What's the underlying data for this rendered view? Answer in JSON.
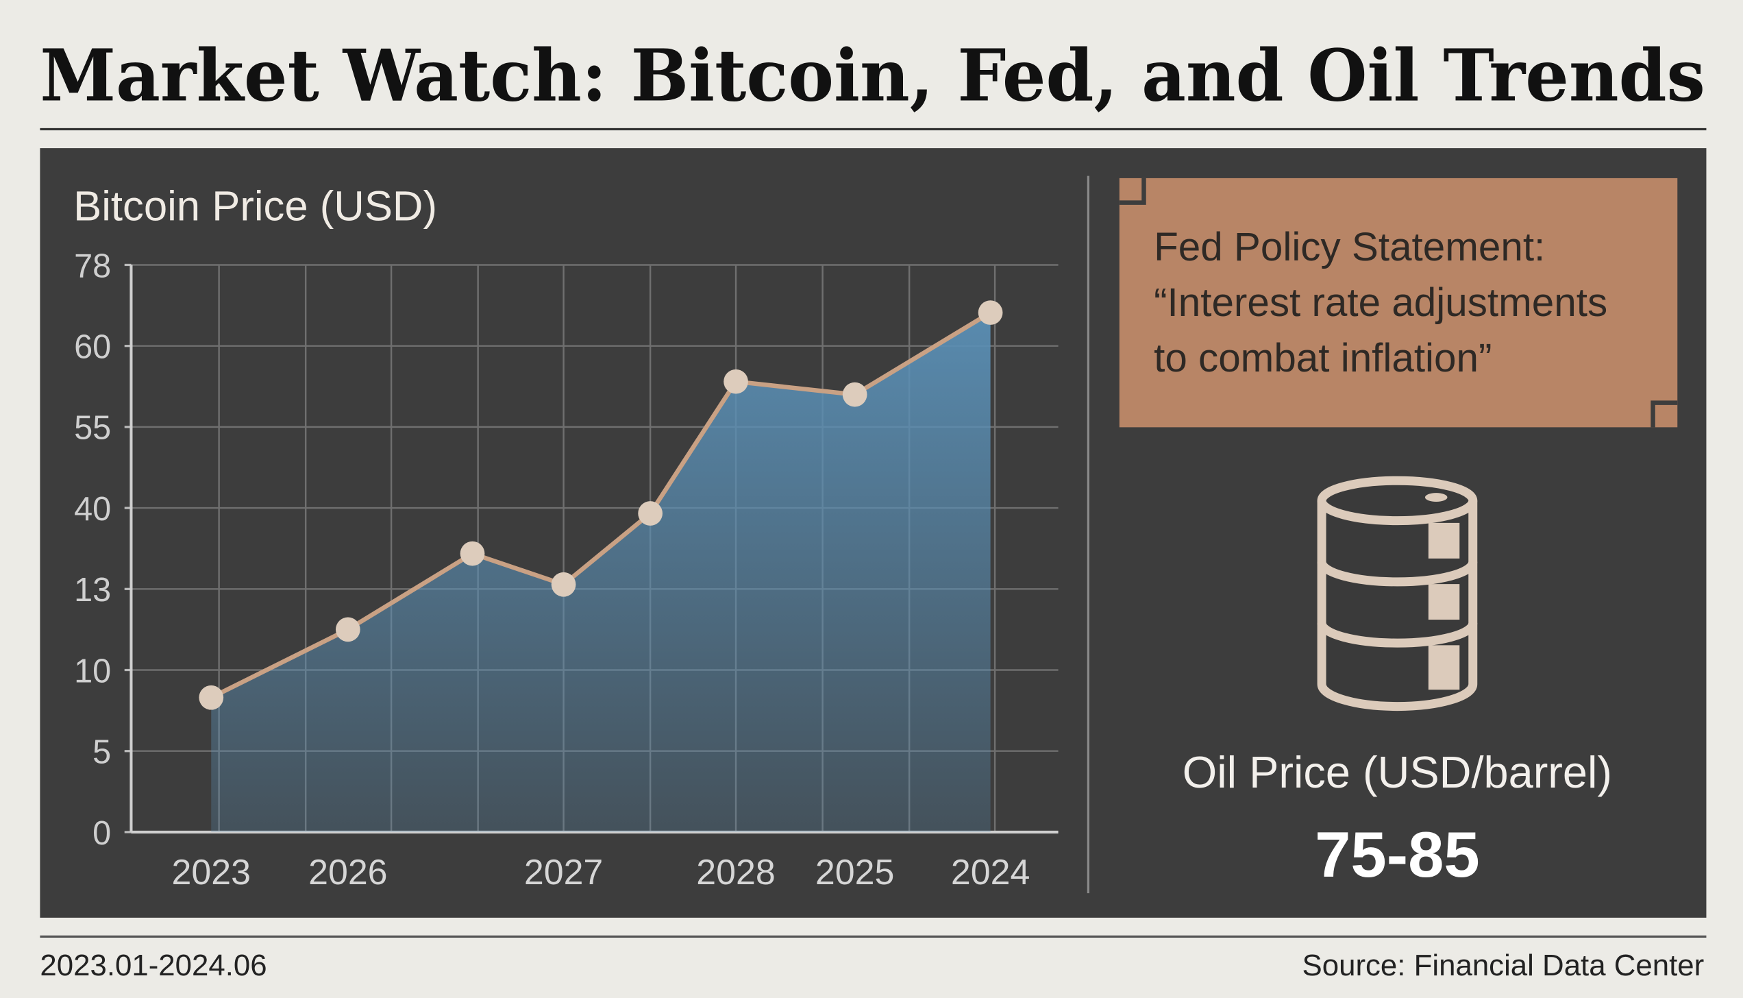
{
  "title": "Market Watch: Bitcoin, Fed, and Oil Trends",
  "chart_data": {
    "type": "line",
    "title": "Bitcoin Price (USD)",
    "categories": [
      "2023",
      "2026",
      null,
      "2027",
      null,
      "2028",
      "2025",
      "2024"
    ],
    "values": [
      8.3,
      11.5,
      24.8,
      14.5,
      38.2,
      57.8,
      57.0,
      67.4
    ],
    "color": "#c9a184",
    "area_color": "#5a8fb5",
    "marker_color": "#ddccbc",
    "ylim": [
      0,
      78
    ],
    "yticks": [
      0,
      5,
      10,
      13,
      40,
      55,
      60,
      78
    ],
    "yscale": "piecewise",
    "grid": true
  },
  "fed": {
    "heading": "Fed Policy Statement:",
    "quote_lines": [
      "“Interest rate adjustments",
      "to combat inflation”"
    ]
  },
  "oil": {
    "label": "Oil Price (USD/barrel)",
    "value": "75-85"
  },
  "footer": {
    "period": "2023.01-2024.06",
    "source": "Source: Financial Data Center"
  }
}
